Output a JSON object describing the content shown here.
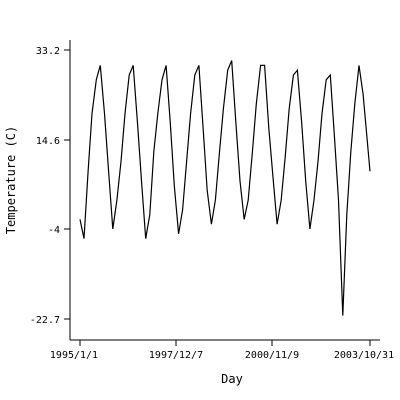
{
  "chart_data": {
    "type": "line",
    "title": "",
    "xlabel": "Day",
    "ylabel": "Temperature (C)",
    "x_ticks": [
      "1995/1/1",
      "1997/12/7",
      "2000/11/9",
      "2003/10/31"
    ],
    "y_ticks": [
      33.2,
      14.6,
      -4.0,
      -22.7
    ],
    "xlim": [
      "1995/1/1",
      "2003/10/31"
    ],
    "ylim": [
      -27,
      37
    ],
    "grid": false,
    "line_color": "#000000",
    "series": [
      {
        "name": "",
        "x": [
          "1995/1/1",
          "1995/2/15",
          "1995/4/1",
          "1995/5/15",
          "1995/7/1",
          "1995/8/15",
          "1995/10/1",
          "1995/11/15",
          "1996/1/1",
          "1996/2/15",
          "1996/4/1",
          "1996/5/15",
          "1996/7/1",
          "1996/8/15",
          "1996/10/1",
          "1996/11/15",
          "1997/1/1",
          "1997/2/15",
          "1997/4/1",
          "1997/5/15",
          "1997/7/1",
          "1997/8/15",
          "1997/10/1",
          "1997/11/15",
          "1998/1/1",
          "1998/2/15",
          "1998/4/1",
          "1998/5/15",
          "1998/7/1",
          "1998/8/15",
          "1998/10/1",
          "1998/11/15",
          "1999/1/1",
          "1999/2/15",
          "1999/4/1",
          "1999/5/15",
          "1999/7/1",
          "1999/8/15",
          "1999/10/1",
          "1999/11/15",
          "2000/1/1",
          "2000/2/15",
          "2000/4/1",
          "2000/5/15",
          "2000/7/1",
          "2000/8/15",
          "2000/10/1",
          "2000/11/15",
          "2001/1/1",
          "2001/2/15",
          "2001/4/1",
          "2001/5/15",
          "2001/7/1",
          "2001/8/15",
          "2001/10/1",
          "2001/11/15",
          "2002/1/1",
          "2002/2/15",
          "2002/4/1",
          "2002/5/15",
          "2002/7/1",
          "2002/8/15",
          "2002/10/1",
          "2002/11/15",
          "2003/1/1",
          "2003/2/15",
          "2003/4/1",
          "2003/5/15",
          "2003/7/1",
          "2003/8/15",
          "2003/10/31"
        ],
        "y": [
          -2.0,
          -6.0,
          8.0,
          20.0,
          27.0,
          30.0,
          20.0,
          8.0,
          -4.0,
          2.0,
          10.0,
          20.0,
          28.0,
          30.0,
          18.0,
          6.0,
          -6.0,
          -1.0,
          12.0,
          20.0,
          27.0,
          30.0,
          18.0,
          5.0,
          -5.0,
          0.0,
          10.0,
          20.0,
          28.0,
          30.0,
          17.0,
          4.0,
          -3.0,
          2.0,
          12.0,
          21.0,
          29.0,
          31.0,
          18.0,
          6.0,
          -2.0,
          2.0,
          12.0,
          22.0,
          30.0,
          30.0,
          17.0,
          7.0,
          -3.0,
          2.0,
          11.0,
          21.0,
          28.0,
          29.0,
          18.0,
          6.0,
          -4.0,
          2.0,
          10.0,
          20.0,
          27.0,
          28.0,
          15.0,
          2.0,
          -22.0,
          -1.0,
          12.0,
          22.0,
          30.0,
          24.0,
          8.0
        ]
      }
    ]
  }
}
